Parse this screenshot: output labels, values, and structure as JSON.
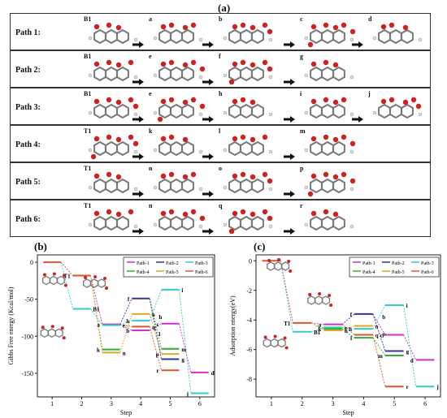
{
  "panel_a": {
    "label": "(a)",
    "rows": [
      {
        "name": "Path 1:",
        "steps": [
          "B1",
          "a",
          "b",
          "c",
          "d"
        ]
      },
      {
        "name": "Path 2:",
        "steps": [
          "B1",
          "e",
          "f",
          "g"
        ]
      },
      {
        "name": "Path 3:",
        "steps": [
          "B1",
          "e",
          "h",
          "i",
          "j"
        ]
      },
      {
        "name": "Path 4:",
        "steps": [
          "T1",
          "k",
          "l",
          "m"
        ]
      },
      {
        "name": "Path 5:",
        "steps": [
          "T1",
          "n",
          "o",
          "p"
        ]
      },
      {
        "name": "Path 6:",
        "steps": [
          "T1",
          "n",
          "q",
          "r"
        ]
      }
    ]
  },
  "panel_b": {
    "label": "(b)"
  },
  "panel_c": {
    "label": "(c)"
  },
  "colors": {
    "Path-1": "#cc33cc",
    "Path-2": "#333399",
    "Path-3": "#33cccc",
    "Path-4": "#33aa33",
    "Path-5": "#ddaa22",
    "Path-6": "#dd5533"
  },
  "chart_data": [
    {
      "type": "line",
      "xlabel": "Step",
      "ylabel": "Gibbs Free energy (Kcal/mol)",
      "xticks": [
        "1",
        "2",
        "3",
        "4",
        "5",
        "6"
      ],
      "yticks": [
        "0",
        "-50",
        "-100",
        "-150"
      ],
      "ylim": [
        -182,
        10
      ],
      "legend": [
        "Path-1",
        "Path-2",
        "Path-3",
        "Path-4",
        "Path-5",
        "Path-6"
      ],
      "levels": [
        {
          "step": 1,
          "value": 0,
          "label": "",
          "series": "Path-6"
        },
        {
          "step": 2,
          "value": -18,
          "label": "T1",
          "series": "Path-6"
        },
        {
          "step": 2,
          "value": -63,
          "label": "B1",
          "series": "Path-3"
        },
        {
          "step": 3,
          "value": -84,
          "label": "a",
          "series": "Path-1"
        },
        {
          "step": 3,
          "value": -85,
          "label": "e",
          "series": "Path-3"
        },
        {
          "step": 3,
          "value": -118,
          "label": "k",
          "series": "Path-4"
        },
        {
          "step": 3,
          "value": -122,
          "label": "n",
          "series": "Path-5"
        },
        {
          "step": 4,
          "value": -49,
          "label": "f",
          "series": "Path-2"
        },
        {
          "step": 4,
          "value": -70,
          "label": "o",
          "series": "Path-5"
        },
        {
          "step": 4,
          "value": -79,
          "label": "h",
          "series": "Path-3"
        },
        {
          "step": 4,
          "value": -87,
          "label": "q",
          "series": "Path-6"
        },
        {
          "step": 4,
          "value": -92,
          "label": "b",
          "series": "Path-1"
        },
        {
          "step": 5,
          "value": -37,
          "label": "i",
          "series": "Path-3"
        },
        {
          "step": 5,
          "value": -83,
          "label": "c",
          "series": "Path-1"
        },
        {
          "step": 5,
          "value": -117,
          "label": "m",
          "series": "Path-4"
        },
        {
          "step": 5,
          "value": -124,
          "label": "p",
          "series": "Path-5"
        },
        {
          "step": 5,
          "value": -131,
          "label": "g",
          "series": "Path-2"
        },
        {
          "step": 5,
          "value": -146,
          "label": "r",
          "series": "Path-6"
        },
        {
          "step": 6,
          "value": -149,
          "label": "d",
          "series": "Path-1"
        },
        {
          "step": 6,
          "value": -177,
          "label": "j",
          "series": "Path-3"
        }
      ],
      "marker_labels": [
        "h",
        "l"
      ]
    },
    {
      "type": "line",
      "xlabel": "Step",
      "ylabel": "Adsorption energy(eV)",
      "xticks": [
        "1",
        "2",
        "3",
        "4",
        "5",
        "6"
      ],
      "yticks": [
        "0",
        "-2",
        "-4",
        "-6",
        "-8"
      ],
      "ylim": [
        -9.2,
        0.4
      ],
      "legend": [
        "Path-1",
        "Path-2",
        "Path-3",
        "Path-4",
        "Path-5",
        "Path-6"
      ],
      "levels": [
        {
          "step": 1,
          "value": 0,
          "label": "",
          "series": "Path-6"
        },
        {
          "step": 2,
          "value": -4.2,
          "label": "T1",
          "series": "Path-6"
        },
        {
          "step": 2,
          "value": -4.8,
          "label": "B1",
          "series": "Path-3"
        },
        {
          "step": 3,
          "value": -4.3,
          "label": "a",
          "series": "Path-1"
        },
        {
          "step": 3,
          "value": -4.5,
          "label": "e",
          "series": "Path-3"
        },
        {
          "step": 3,
          "value": -4.6,
          "label": "k",
          "series": "Path-4"
        },
        {
          "step": 3,
          "value": -4.7,
          "label": "n",
          "series": "Path-5"
        },
        {
          "step": 4,
          "value": -3.6,
          "label": "f",
          "series": "Path-2"
        },
        {
          "step": 4,
          "value": -4.4,
          "label": "o",
          "series": "Path-5"
        },
        {
          "step": 4,
          "value": -4.6,
          "label": "h",
          "series": "Path-3"
        },
        {
          "step": 4,
          "value": -5.0,
          "label": "q",
          "series": "Path-6"
        },
        {
          "step": 4,
          "value": -5.2,
          "label": "l",
          "series": "Path-4"
        },
        {
          "step": 5,
          "value": -3.0,
          "label": "i",
          "series": "Path-3"
        },
        {
          "step": 5,
          "value": -5.0,
          "label": "c",
          "series": "Path-1"
        },
        {
          "step": 5,
          "value": -6.1,
          "label": "g",
          "series": "Path-2"
        },
        {
          "step": 5,
          "value": -6.4,
          "label": "m",
          "series": "Path-4"
        },
        {
          "step": 5,
          "value": -8.5,
          "label": "r",
          "series": "Path-6"
        },
        {
          "step": 6,
          "value": -6.7,
          "label": "d",
          "series": "Path-1"
        },
        {
          "step": 6,
          "value": -8.5,
          "label": "j",
          "series": "Path-3"
        }
      ],
      "marker_labels": [
        "b",
        "p"
      ]
    }
  ]
}
